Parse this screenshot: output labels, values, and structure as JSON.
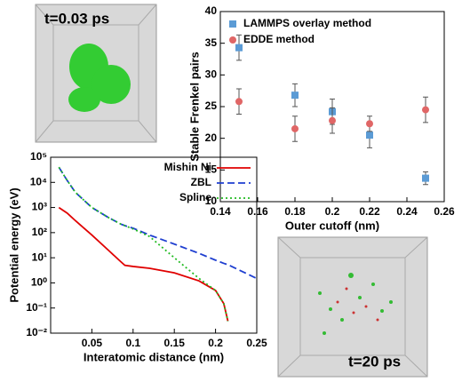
{
  "chart_data": [
    {
      "type": "scatter",
      "xlabel": "Outer cutoff (nm)",
      "ylabel": "Stable Frenkel pairs",
      "xlim": [
        0.14,
        0.26
      ],
      "xticks": [
        0.14,
        0.16,
        0.18,
        0.2,
        0.22,
        0.24,
        0.26
      ],
      "ylim": [
        10,
        40
      ],
      "yticks": [
        10,
        15,
        20,
        25,
        30,
        35,
        40
      ],
      "legend": "upper left",
      "x": [
        0.15,
        0.18,
        0.2,
        0.22,
        0.25
      ],
      "series": [
        {
          "name": "LAMMPS overlay method",
          "color": "#5b9bd5",
          "marker": "square",
          "values": [
            34.3,
            26.8,
            24.2,
            20.5,
            13.7
          ],
          "errors": [
            2,
            1.8,
            2,
            2,
            1
          ]
        },
        {
          "name": "EDDE method",
          "color": "#e06666",
          "marker": "circle",
          "values": [
            25.8,
            21.5,
            22.8,
            22.3,
            24.5
          ],
          "errors": [
            2,
            2,
            2,
            1.2,
            2
          ]
        }
      ]
    },
    {
      "type": "line",
      "xlabel": "Interatomic distance (nm)",
      "ylabel": "Potential energy (eV)",
      "log_y": true,
      "xlim": [
        0,
        0.25
      ],
      "xticks": [
        0.05,
        0.1,
        0.15,
        0.2,
        0.25
      ],
      "ylim": [
        0.01,
        100000
      ],
      "yticks": [
        {
          "value": 0.01,
          "label": "10⁻²"
        },
        {
          "value": 0.1,
          "label": "10⁻¹"
        },
        {
          "value": 1,
          "label": "10⁰"
        },
        {
          "value": 10,
          "label": "10¹"
        },
        {
          "value": 100,
          "label": "10²"
        },
        {
          "value": 1000,
          "label": "10³"
        },
        {
          "value": 10000,
          "label": "10⁴"
        },
        {
          "value": 100000,
          "label": "10⁵"
        }
      ],
      "legend": "upper right",
      "x": [
        0.01,
        0.02,
        0.03,
        0.05,
        0.07,
        0.085,
        0.09,
        0.1,
        0.12,
        0.15,
        0.18,
        0.2,
        0.21,
        0.215,
        0.25
      ],
      "series": [
        {
          "name": "Mishin Ni",
          "color": "#e00000",
          "dash": "solid",
          "values": [
            1000,
            600,
            300,
            80,
            20,
            7,
            5,
            4.5,
            3.8,
            2.5,
            1.2,
            0.5,
            0.15,
            0.03,
            null
          ]
        },
        {
          "name": "ZBL",
          "color": "#1f3fd0",
          "dash": "dashed",
          "values": [
            40000,
            12000,
            4000,
            1000,
            400,
            220,
            190,
            150,
            80,
            35,
            15,
            8,
            6,
            5.3,
            1.5
          ]
        },
        {
          "name": "Spline",
          "color": "#22bb22",
          "dash": "dotted",
          "values": [
            40000,
            12000,
            4000,
            1000,
            400,
            220,
            190,
            140,
            70,
            10,
            1.5,
            0.5,
            0.15,
            0.03,
            null
          ]
        }
      ]
    }
  ],
  "images": [
    {
      "label": "t=0.03 ps"
    },
    {
      "label": "t=20 ps"
    }
  ]
}
